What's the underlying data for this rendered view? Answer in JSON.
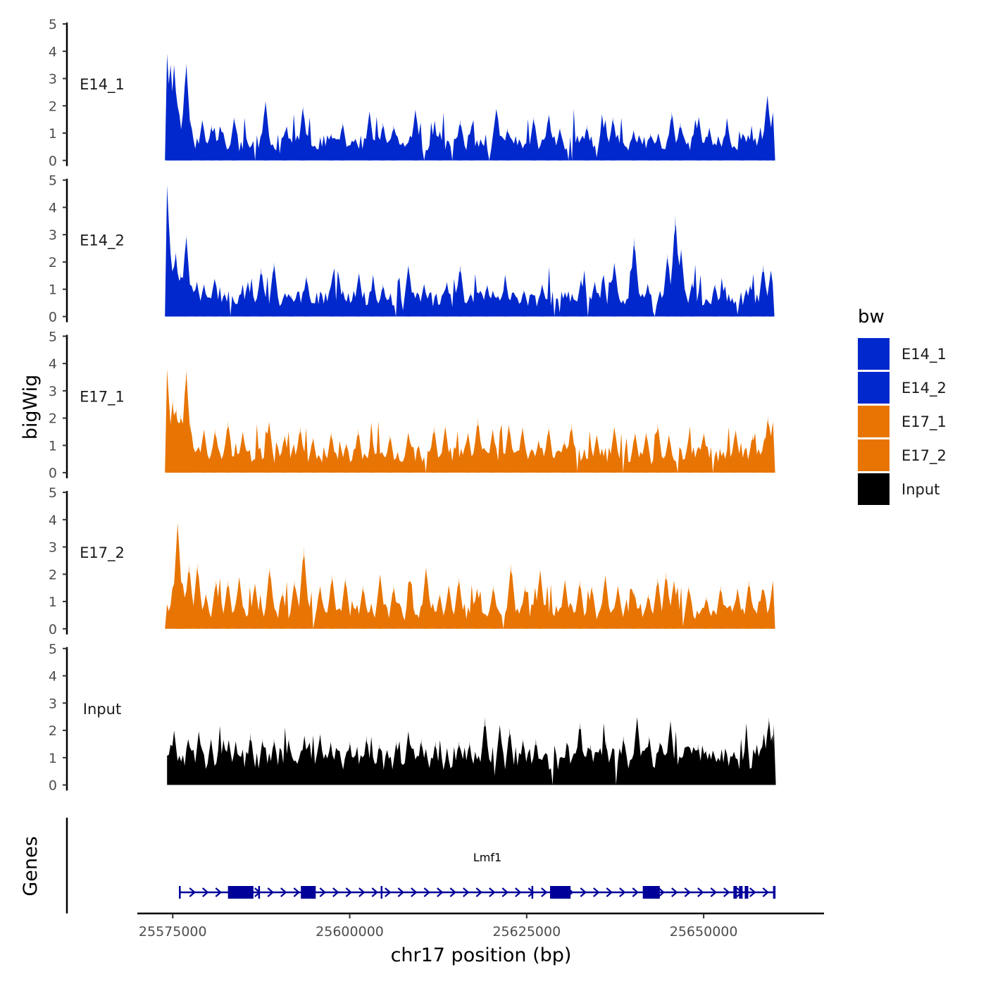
{
  "chart_data": {
    "type": "area",
    "ylabel": "bigWig",
    "xlabel": "chr17 position (bp)",
    "x_ticks": [
      25575000,
      25600000,
      25625000,
      25650000
    ],
    "x_tick_labels": [
      "25575000",
      "25600000",
      "25625000",
      "25650000"
    ],
    "xlim": [
      25570000,
      25667000
    ],
    "data_range": [
      25574200,
      25660000
    ],
    "y_ticks": [
      0,
      1,
      2,
      3,
      4,
      5
    ],
    "ylim": [
      0,
      5
    ],
    "series": [
      {
        "name": "E14_1",
        "color": "#0028CC",
        "peaks": [
          [
            25574200,
            3.9
          ],
          [
            25574700,
            3.5
          ],
          [
            25575200,
            3.5
          ],
          [
            25575700,
            2.0
          ],
          [
            25576300,
            1.3
          ],
          [
            25576900,
            3.6
          ],
          [
            25577500,
            1.5
          ],
          [
            25579200,
            1.5
          ],
          [
            25580500,
            1.3
          ],
          [
            25581800,
            1.2
          ],
          [
            25583700,
            1.6
          ],
          [
            25588100,
            2.2
          ],
          [
            25590800,
            1.1
          ],
          [
            25593400,
            2.0
          ],
          [
            25597400,
            1.0
          ],
          [
            25599000,
            1.4
          ],
          [
            25602800,
            1.8
          ],
          [
            25604700,
            1.4
          ],
          [
            25606200,
            1.3
          ],
          [
            25609300,
            1.9
          ],
          [
            25612700,
            1.1
          ],
          [
            25615600,
            1.5
          ],
          [
            25617200,
            1.3
          ],
          [
            25620700,
            1.9
          ],
          [
            25622300,
            1.2
          ],
          [
            25626000,
            1.6
          ],
          [
            25628100,
            1.7
          ],
          [
            25629700,
            1.2
          ],
          [
            25633500,
            1.3
          ],
          [
            25635700,
            1.5
          ],
          [
            25637200,
            1.6
          ],
          [
            25640100,
            1.1
          ],
          [
            25642500,
            1.0
          ],
          [
            25643600,
            1.0
          ],
          [
            25645500,
            1.8
          ],
          [
            25646700,
            1.4
          ],
          [
            25649300,
            1.6
          ],
          [
            25650800,
            1.2
          ],
          [
            25652400,
            0.6
          ],
          [
            25655500,
            1.0
          ],
          [
            25658000,
            1.1
          ],
          [
            25659000,
            2.4
          ],
          [
            25659800,
            1.8
          ]
        ]
      },
      {
        "name": "E14_2",
        "color": "#0028CC",
        "peaks": [
          [
            25574200,
            4.8
          ],
          [
            25574700,
            2.3
          ],
          [
            25575400,
            2.4
          ],
          [
            25576100,
            1.6
          ],
          [
            25576900,
            3.0
          ],
          [
            25578400,
            1.3
          ],
          [
            25579400,
            1.2
          ],
          [
            25580900,
            1.4
          ],
          [
            25582300,
            0.9
          ],
          [
            25585600,
            1.3
          ],
          [
            25587500,
            1.8
          ],
          [
            25589300,
            2.0
          ],
          [
            25591700,
            0.8
          ],
          [
            25593900,
            1.5
          ],
          [
            25597400,
            1.2
          ],
          [
            25599000,
            1.0
          ],
          [
            25601300,
            1.6
          ],
          [
            25603100,
            1.0
          ],
          [
            25604700,
            1.2
          ],
          [
            25608300,
            1.9
          ],
          [
            25610500,
            1.2
          ],
          [
            25613700,
            1.3
          ],
          [
            25615600,
            1.9
          ],
          [
            25617100,
            0.9
          ],
          [
            25619400,
            1.2
          ],
          [
            25622000,
            1.4
          ],
          [
            25624600,
            1.0
          ],
          [
            25627200,
            1.2
          ],
          [
            25630400,
            0.9
          ],
          [
            25632700,
            1.4
          ],
          [
            25634600,
            1.3
          ],
          [
            25637400,
            2.0
          ],
          [
            25640200,
            2.9
          ],
          [
            25642100,
            1.2
          ],
          [
            25644900,
            2.3
          ],
          [
            25646000,
            3.7
          ],
          [
            25646800,
            2.5
          ],
          [
            25648400,
            1.3
          ],
          [
            25651600,
            1.2
          ],
          [
            25654000,
            0.7
          ],
          [
            25656600,
            1.2
          ],
          [
            25658400,
            1.9
          ],
          [
            25659500,
            1.7
          ]
        ]
      },
      {
        "name": "E17_1",
        "color": "#E87503",
        "peaks": [
          [
            25574200,
            3.8
          ],
          [
            25575000,
            2.7
          ],
          [
            25575500,
            2.4
          ],
          [
            25576100,
            2.2
          ],
          [
            25576900,
            3.8
          ],
          [
            25577500,
            1.8
          ],
          [
            25579400,
            1.6
          ],
          [
            25581000,
            1.6
          ],
          [
            25582800,
            1.9
          ],
          [
            25584900,
            1.5
          ],
          [
            25588600,
            1.9
          ],
          [
            25590800,
            1.4
          ],
          [
            25593000,
            1.7
          ],
          [
            25594800,
            1.3
          ],
          [
            25597400,
            1.5
          ],
          [
            25599500,
            1.1
          ],
          [
            25601200,
            1.6
          ],
          [
            25603100,
            1.4
          ],
          [
            25605700,
            1.4
          ],
          [
            25608300,
            1.5
          ],
          [
            25611900,
            1.7
          ],
          [
            25613500,
            1.7
          ],
          [
            25616700,
            1.5
          ],
          [
            25618100,
            2.0
          ],
          [
            25620200,
            1.6
          ],
          [
            25622500,
            1.8
          ],
          [
            25624400,
            1.7
          ],
          [
            25626700,
            1.2
          ],
          [
            25628100,
            1.7
          ],
          [
            25630300,
            1.2
          ],
          [
            25631300,
            1.8
          ],
          [
            25634900,
            1.4
          ],
          [
            25637400,
            1.7
          ],
          [
            25640300,
            1.5
          ],
          [
            25641900,
            1.5
          ],
          [
            25643500,
            1.8
          ],
          [
            25645100,
            1.4
          ],
          [
            25647900,
            1.3
          ],
          [
            25650000,
            1.5
          ],
          [
            25652700,
            0.5
          ],
          [
            25654500,
            1.6
          ],
          [
            25656900,
            1.4
          ],
          [
            25658600,
            1.3
          ],
          [
            25659100,
            2.1
          ],
          [
            25659800,
            1.9
          ]
        ]
      },
      {
        "name": "E17_2",
        "color": "#E87503",
        "peaks": [
          [
            25574200,
            0.9
          ],
          [
            25575700,
            3.9
          ],
          [
            25576400,
            1.7
          ],
          [
            25577300,
            2.4
          ],
          [
            25578500,
            2.4
          ],
          [
            25579700,
            1.3
          ],
          [
            25581100,
            1.8
          ],
          [
            25582800,
            1.8
          ],
          [
            25584400,
            1.9
          ],
          [
            25586600,
            1.7
          ],
          [
            25588700,
            2.3
          ],
          [
            25590500,
            1.4
          ],
          [
            25592200,
            1.8
          ],
          [
            25593500,
            3.0
          ],
          [
            25595800,
            1.6
          ],
          [
            25597500,
            2.0
          ],
          [
            25599400,
            1.9
          ],
          [
            25601900,
            1.6
          ],
          [
            25604300,
            2.0
          ],
          [
            25606200,
            1.6
          ],
          [
            25608500,
            1.8
          ],
          [
            25610800,
            2.3
          ],
          [
            25612700,
            1.3
          ],
          [
            25614000,
            1.6
          ],
          [
            25615400,
            1.9
          ],
          [
            25618000,
            1.5
          ],
          [
            25620300,
            1.6
          ],
          [
            25622800,
            2.4
          ],
          [
            25624800,
            1.6
          ],
          [
            25626900,
            2.2
          ],
          [
            25630400,
            1.8
          ],
          [
            25632500,
            1.8
          ],
          [
            25634200,
            1.6
          ],
          [
            25636100,
            2.0
          ],
          [
            25637900,
            1.6
          ],
          [
            25640200,
            1.4
          ],
          [
            25642200,
            1.3
          ],
          [
            25643500,
            1.9
          ],
          [
            25644700,
            2.1
          ],
          [
            25645800,
            1.8
          ],
          [
            25647900,
            1.6
          ],
          [
            25650400,
            1.2
          ],
          [
            25652400,
            1.6
          ],
          [
            25654800,
            1.5
          ],
          [
            25656400,
            1.8
          ],
          [
            25658300,
            1.5
          ],
          [
            25659800,
            1.8
          ]
        ]
      },
      {
        "name": "Input",
        "color": "#000000",
        "peaks": [
          [
            25575200,
            2.0
          ],
          [
            25577200,
            1.7
          ],
          [
            25578700,
            2.0
          ],
          [
            25580400,
            1.7
          ],
          [
            25582200,
            1.7
          ],
          [
            25583900,
            1.6
          ],
          [
            25586000,
            1.9
          ],
          [
            25587700,
            1.7
          ],
          [
            25589300,
            1.7
          ],
          [
            25591400,
            1.7
          ],
          [
            25593600,
            1.8
          ],
          [
            25595800,
            1.9
          ],
          [
            25597300,
            1.6
          ],
          [
            25600000,
            1.6
          ],
          [
            25602400,
            1.8
          ],
          [
            25604200,
            1.5
          ],
          [
            25606600,
            1.6
          ],
          [
            25608300,
            2.0
          ],
          [
            25610100,
            1.7
          ],
          [
            25612100,
            1.6
          ],
          [
            25615400,
            1.6
          ],
          [
            25616900,
            1.6
          ],
          [
            25619100,
            2.5
          ],
          [
            25621200,
            2.2
          ],
          [
            25622600,
            2.1
          ],
          [
            25624500,
            1.7
          ],
          [
            25626300,
            1.7
          ],
          [
            25630700,
            1.5
          ],
          [
            25632500,
            2.3
          ],
          [
            25634000,
            1.5
          ],
          [
            25636200,
            1.6
          ],
          [
            25638700,
            1.8
          ],
          [
            25640600,
            2.5
          ],
          [
            25642300,
            1.8
          ],
          [
            25643800,
            1.6
          ],
          [
            25645300,
            2.4
          ],
          [
            25647300,
            1.4
          ],
          [
            25649200,
            1.5
          ],
          [
            25651200,
            1.1
          ],
          [
            25653700,
            0.7
          ],
          [
            25655800,
            1.3
          ],
          [
            25657500,
            1.5
          ],
          [
            25658500,
            1.9
          ],
          [
            25659200,
            2.5
          ],
          [
            25659900,
            2.2
          ]
        ]
      }
    ],
    "genes": {
      "track_label": "Genes",
      "name": "Lmf1",
      "strand": "+",
      "color": "#000099",
      "start": 25576000,
      "end": 25660000,
      "exons": [
        [
          25582800,
          25586400
        ],
        [
          25593100,
          25595200
        ],
        [
          25628300,
          25631200
        ],
        [
          25641400,
          25643800
        ],
        [
          25654200,
          25654700
        ],
        [
          25655000,
          25655500
        ],
        [
          25655800,
          25656300
        ],
        [
          25659800,
          25660000
        ]
      ],
      "markers": [
        25576000,
        25587200,
        25604500,
        25625800
      ]
    }
  },
  "legend": {
    "title": "bw",
    "items": [
      {
        "label": "E14_1",
        "color": "#0028CC"
      },
      {
        "label": "E14_2",
        "color": "#0028CC"
      },
      {
        "label": "E17_1",
        "color": "#E87503"
      },
      {
        "label": "E17_2",
        "color": "#E87503"
      },
      {
        "label": "Input",
        "color": "#000000"
      }
    ]
  }
}
